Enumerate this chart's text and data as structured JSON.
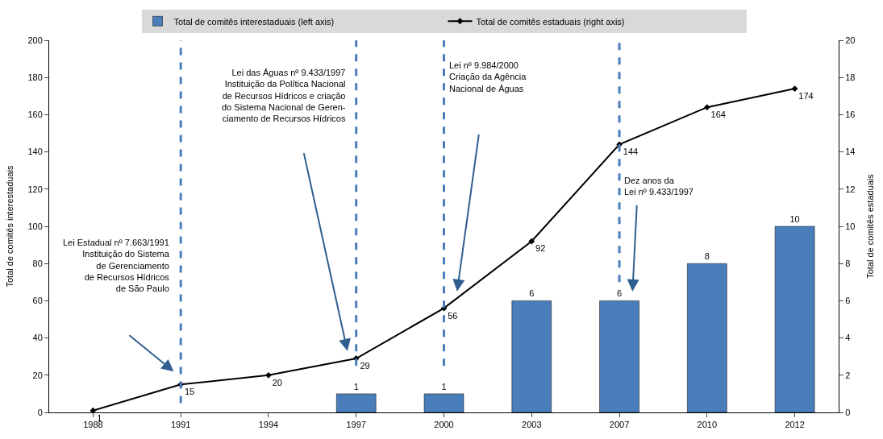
{
  "chart_data": {
    "type": "bar",
    "categories": [
      "1988",
      "1991",
      "1994",
      "1997",
      "2000",
      "2003",
      "2007",
      "2010",
      "2012"
    ],
    "series": [
      {
        "name": "Total de comitês interestaduais (left axis)",
        "axis": "y2",
        "color": "#4a7ebb",
        "values": [
          null,
          null,
          null,
          1,
          1,
          6,
          6,
          8,
          10
        ]
      },
      {
        "name": "Total de comitês estaduais (right axis)",
        "type": "line",
        "axis": "y",
        "color": "#000000",
        "marker": "diamond",
        "values": [
          1,
          15,
          20,
          29,
          56,
          92,
          144,
          164,
          174
        ]
      }
    ],
    "ylabel": "Total de comitês interestaduais",
    "y2label": "Total de comitês estaduais",
    "ylim": [
      0,
      200
    ],
    "yticks": [
      0,
      20,
      40,
      60,
      80,
      100,
      120,
      140,
      160,
      180,
      200
    ],
    "y2lim": [
      0,
      20
    ],
    "y2ticks": [
      0,
      2,
      4,
      6,
      8,
      10,
      12,
      14,
      16,
      18,
      20
    ],
    "data_labels": true,
    "grid": false,
    "legend": "top",
    "ref_lines": [
      {
        "axis": "x",
        "value": "1991",
        "color": "#4a7ebb",
        "line_style": "dashed",
        "label": "Lei Estadual nº 7.663/1991\nInstituição do Sistema\nde Gerenciamento\nde Recursos Hídricos\nde São Paulo"
      },
      {
        "axis": "x",
        "value": "1997",
        "color": "#4a7ebb",
        "line_style": "dashed",
        "label": "Lei das Águas nº 9.433/1997\nInstituição da Política Nacional\nde Recursos Hídricos e criação\ndo Sistema Nacional de Geren-\nciamento de Recursos Hídricos"
      },
      {
        "axis": "x",
        "value": "2000",
        "color": "#4a7ebb",
        "line_style": "dashed",
        "label": "Lei nº 9.984/2000\nCriação da Agência\nNacional de Águas"
      },
      {
        "axis": "x",
        "value": "2007",
        "color": "#4a7ebb",
        "line_style": "dashed",
        "label": "Dez anos da\nLei nº 9.433/1997"
      }
    ]
  }
}
